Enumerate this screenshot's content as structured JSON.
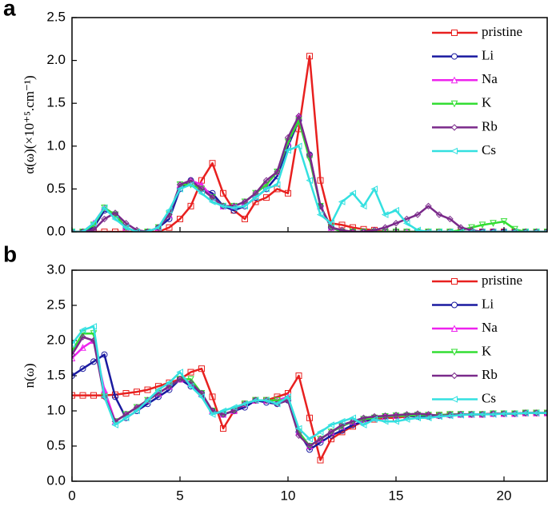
{
  "chart_data": [
    {
      "type": "line",
      "panel_label": "a",
      "ylabel": "α(ω)(×10⁺⁵.cm⁻¹)",
      "x": [
        0,
        0.5,
        1,
        1.5,
        2,
        2.5,
        3,
        3.5,
        4,
        4.5,
        5,
        5.5,
        6,
        6.5,
        7,
        7.5,
        8,
        8.5,
        9,
        9.5,
        10,
        10.5,
        11,
        11.5,
        12,
        12.5,
        13,
        13.5,
        14,
        14.5,
        15,
        15.5,
        16,
        16.5,
        17,
        17.5,
        18,
        18.5,
        19,
        19.5,
        20,
        20.5,
        21,
        21.5,
        22
      ],
      "xlim": [
        0,
        22
      ],
      "ylim": [
        0,
        2.5
      ],
      "yticks": [
        {
          "value": 0,
          "label": "0.0"
        },
        0.5,
        {
          "value": 1,
          "label": "1.0"
        },
        1.5,
        {
          "value": 2,
          "label": "2.0"
        },
        2.5
      ],
      "legend": "upper right",
      "series": [
        {
          "name": "pristine",
          "color": "#e8201f",
          "marker": "square",
          "values": [
            0,
            0,
            0,
            0,
            0,
            0,
            0,
            0,
            0,
            0.05,
            0.15,
            0.3,
            0.6,
            0.8,
            0.45,
            0.25,
            0.15,
            0.35,
            0.4,
            0.5,
            0.45,
            1.2,
            2.05,
            0.6,
            0.1,
            0.08,
            0.05,
            0.03,
            0.02,
            0,
            0,
            0,
            0,
            0,
            0,
            0,
            0,
            0,
            0,
            0,
            0,
            0,
            0,
            0,
            0
          ]
        },
        {
          "name": "Li",
          "color": "#1a1aa0",
          "marker": "circle",
          "values": [
            0,
            0,
            0.05,
            0.25,
            0.2,
            0.05,
            0,
            0,
            0.05,
            0.15,
            0.5,
            0.6,
            0.5,
            0.45,
            0.3,
            0.25,
            0.3,
            0.4,
            0.5,
            0.65,
            1.0,
            1.3,
            0.9,
            0.3,
            0.05,
            0,
            0,
            0,
            0,
            0,
            0,
            0,
            0,
            0,
            0,
            0,
            0,
            0,
            0,
            0,
            0,
            0,
            0,
            0,
            0
          ]
        },
        {
          "name": "Na",
          "color": "#ee22ee",
          "marker": "triangle-up",
          "values": [
            0,
            0,
            0.1,
            0.28,
            0.2,
            0.05,
            0,
            0,
            0.05,
            0.2,
            0.55,
            0.6,
            0.55,
            0.4,
            0.3,
            0.3,
            0.35,
            0.45,
            0.55,
            0.7,
            1.05,
            1.35,
            0.9,
            0.3,
            0.05,
            0,
            0,
            0,
            0,
            0,
            0,
            0,
            0,
            0,
            0,
            0,
            0,
            0,
            0,
            0,
            0,
            0,
            0,
            0,
            0
          ]
        },
        {
          "name": "K",
          "color": "#33dd33",
          "marker": "triangle-down",
          "values": [
            0,
            0,
            0.08,
            0.28,
            0.2,
            0.05,
            0,
            0,
            0.05,
            0.2,
            0.55,
            0.55,
            0.5,
            0.4,
            0.3,
            0.3,
            0.35,
            0.45,
            0.55,
            0.7,
            1.05,
            1.3,
            0.85,
            0.3,
            0.05,
            0,
            0,
            0,
            0,
            0,
            0,
            0,
            0,
            0,
            0,
            0,
            0.02,
            0.05,
            0.08,
            0.1,
            0.12,
            0.03,
            0,
            0,
            0
          ]
        },
        {
          "name": "Rb",
          "color": "#7a2a8a",
          "marker": "diamond",
          "values": [
            0,
            0,
            0.02,
            0.15,
            0.22,
            0.1,
            0.02,
            0,
            0.05,
            0.2,
            0.55,
            0.6,
            0.5,
            0.4,
            0.3,
            0.3,
            0.35,
            0.45,
            0.6,
            0.7,
            1.1,
            1.35,
            0.9,
            0.3,
            0.05,
            0.02,
            0,
            0,
            0.02,
            0.05,
            0.1,
            0.15,
            0.2,
            0.3,
            0.2,
            0.15,
            0.05,
            0.02,
            0,
            0,
            0,
            0,
            0,
            0,
            0
          ]
        },
        {
          "name": "Cs",
          "color": "#33e0e0",
          "marker": "triangle-left",
          "values": [
            0,
            0,
            0.1,
            0.28,
            0.15,
            0.05,
            0,
            0,
            0.05,
            0.25,
            0.5,
            0.55,
            0.45,
            0.35,
            0.3,
            0.28,
            0.3,
            0.4,
            0.5,
            0.55,
            0.95,
            1.0,
            0.6,
            0.2,
            0.1,
            0.35,
            0.45,
            0.3,
            0.5,
            0.2,
            0.25,
            0.1,
            0.02,
            0,
            0,
            0,
            0,
            0,
            0,
            0,
            0,
            0,
            0,
            0,
            0
          ]
        }
      ]
    },
    {
      "type": "line",
      "panel_label": "b",
      "ylabel": "n(ω)",
      "x": [
        0,
        0.5,
        1,
        1.5,
        2,
        2.5,
        3,
        3.5,
        4,
        4.5,
        5,
        5.5,
        6,
        6.5,
        7,
        7.5,
        8,
        8.5,
        9,
        9.5,
        10,
        10.5,
        11,
        11.5,
        12,
        12.5,
        13,
        13.5,
        14,
        14.5,
        15,
        15.5,
        16,
        16.5,
        17,
        17.5,
        18,
        18.5,
        19,
        19.5,
        20,
        20.5,
        21,
        21.5,
        22
      ],
      "xlim": [
        0,
        22
      ],
      "xticks": [
        0,
        5,
        10,
        15,
        20
      ],
      "ylim": [
        0,
        3
      ],
      "yticks": [
        {
          "value": 0,
          "label": "0.0"
        },
        0.5,
        {
          "value": 1,
          "label": "1.0"
        },
        1.5,
        {
          "value": 2,
          "label": "2.0"
        },
        2.5,
        {
          "value": 3,
          "label": "3.0"
        }
      ],
      "legend": "upper right",
      "series": [
        {
          "name": "pristine",
          "color": "#e8201f",
          "marker": "square",
          "values": [
            1.22,
            1.22,
            1.22,
            1.22,
            1.23,
            1.25,
            1.27,
            1.3,
            1.35,
            1.4,
            1.45,
            1.55,
            1.6,
            1.2,
            0.75,
            1.0,
            1.1,
            1.15,
            1.15,
            1.2,
            1.25,
            1.5,
            0.9,
            0.3,
            0.6,
            0.7,
            0.78,
            0.85,
            0.88,
            0.9,
            0.9,
            0.92,
            0.93,
            0.93,
            0.94,
            0.95,
            0.95,
            0.95,
            0.95,
            0.96,
            0.96,
            0.96,
            0.97,
            0.97,
            0.97
          ]
        },
        {
          "name": "Li",
          "color": "#1a1aa0",
          "marker": "circle",
          "values": [
            1.5,
            1.6,
            1.7,
            1.8,
            1.2,
            0.9,
            1.0,
            1.1,
            1.2,
            1.3,
            1.45,
            1.35,
            1.25,
            1.0,
            0.95,
            1.0,
            1.05,
            1.15,
            1.12,
            1.1,
            1.15,
            0.7,
            0.45,
            0.55,
            0.65,
            0.72,
            0.8,
            0.85,
            0.9,
            0.92,
            0.93,
            0.93,
            0.92,
            0.92,
            0.93,
            0.94,
            0.95,
            0.95,
            0.95,
            0.96,
            0.96,
            0.96,
            0.97,
            0.97,
            0.97
          ]
        },
        {
          "name": "Na",
          "color": "#ee22ee",
          "marker": "triangle-up",
          "values": [
            1.75,
            1.9,
            2.0,
            1.3,
            0.85,
            0.95,
            1.05,
            1.15,
            1.25,
            1.35,
            1.45,
            1.4,
            1.25,
            1.0,
            0.95,
            1.0,
            1.1,
            1.15,
            1.15,
            1.15,
            1.2,
            0.7,
            0.5,
            0.6,
            0.7,
            0.78,
            0.85,
            0.88,
            0.9,
            0.92,
            0.93,
            0.93,
            0.94,
            0.94,
            0.94,
            0.95,
            0.95,
            0.95,
            0.95,
            0.96,
            0.96,
            0.96,
            0.97,
            0.97,
            0.97
          ]
        },
        {
          "name": "K",
          "color": "#33dd33",
          "marker": "triangle-down",
          "values": [
            1.85,
            2.1,
            2.1,
            1.2,
            0.85,
            0.95,
            1.05,
            1.15,
            1.25,
            1.35,
            1.45,
            1.45,
            1.25,
            1.0,
            0.95,
            1.0,
            1.1,
            1.15,
            1.15,
            1.15,
            1.15,
            0.7,
            0.5,
            0.6,
            0.7,
            0.78,
            0.85,
            0.88,
            0.9,
            0.92,
            0.93,
            0.93,
            0.94,
            0.94,
            0.94,
            0.95,
            0.95,
            0.95,
            0.95,
            0.96,
            0.96,
            0.96,
            0.97,
            0.97,
            0.97
          ]
        },
        {
          "name": "Rb",
          "color": "#7a2a8a",
          "marker": "diamond",
          "values": [
            1.8,
            2.05,
            2.0,
            1.2,
            0.85,
            0.95,
            1.05,
            1.15,
            1.25,
            1.35,
            1.45,
            1.4,
            1.25,
            1.0,
            0.95,
            1.0,
            1.1,
            1.15,
            1.15,
            1.1,
            1.15,
            0.65,
            0.5,
            0.6,
            0.7,
            0.8,
            0.85,
            0.9,
            0.92,
            0.93,
            0.94,
            0.95,
            0.96,
            0.95,
            0.93,
            0.94,
            0.95,
            0.95,
            0.95,
            0.96,
            0.96,
            0.96,
            0.97,
            0.97,
            0.97
          ]
        },
        {
          "name": "Cs",
          "color": "#33e0e0",
          "marker": "triangle-left",
          "values": [
            1.95,
            2.15,
            2.2,
            1.2,
            0.8,
            0.9,
            1.0,
            1.15,
            1.3,
            1.4,
            1.55,
            1.35,
            1.2,
            0.95,
            1.0,
            1.05,
            1.1,
            1.15,
            1.15,
            1.1,
            1.2,
            0.75,
            0.6,
            0.7,
            0.8,
            0.85,
            0.9,
            0.8,
            0.88,
            0.85,
            0.85,
            0.88,
            0.9,
            0.9,
            0.92,
            0.93,
            0.94,
            0.95,
            0.95,
            0.95,
            0.96,
            0.96,
            0.97,
            0.97,
            0.97
          ]
        }
      ]
    }
  ]
}
